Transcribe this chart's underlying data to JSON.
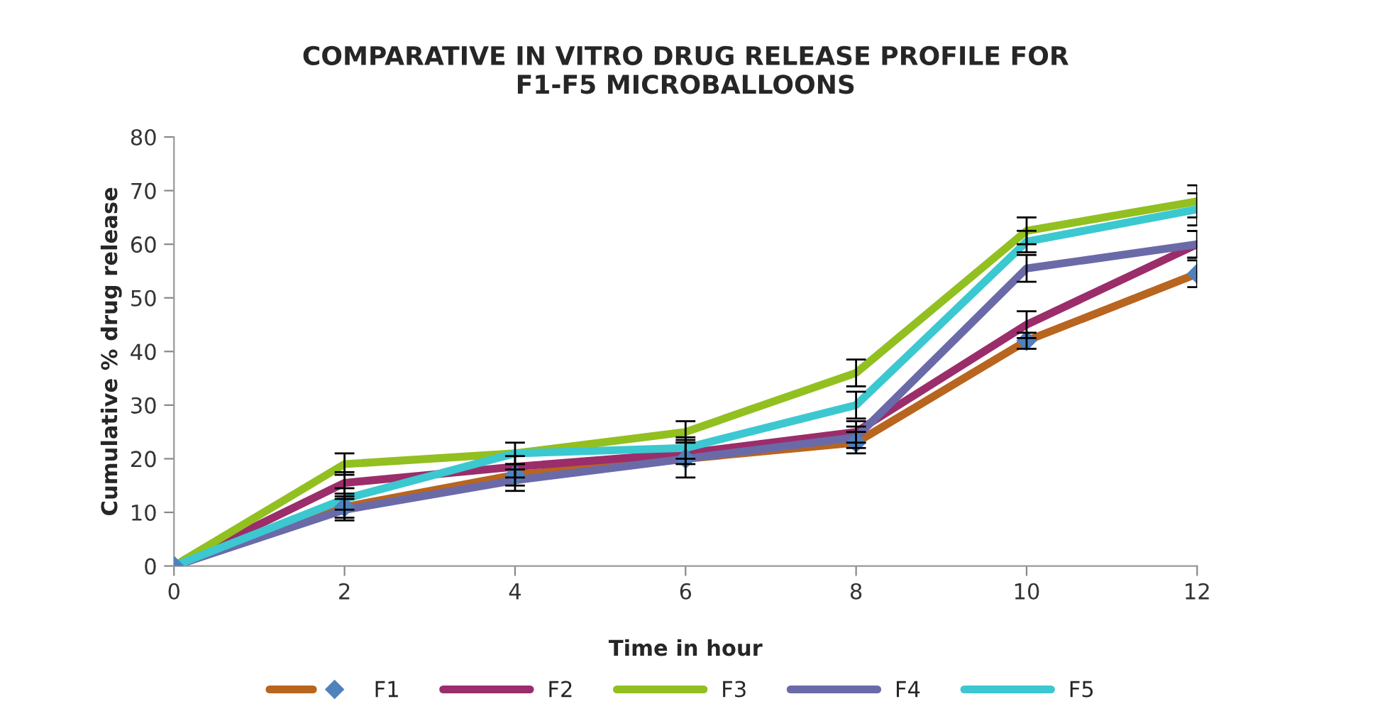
{
  "chart_data": {
    "type": "line",
    "title": "COMPARATIVE IN VITRO DRUG RELEASE PROFILE FOR\nF1-F5 MICROBALLOONS",
    "xlabel": "Time in hour",
    "ylabel": "Cumulative % drug release",
    "x": [
      0,
      2,
      4,
      6,
      8,
      10,
      12
    ],
    "series": [
      {
        "name": "F1",
        "color": "#b8651f",
        "marker": "diamond",
        "colors": [
          "#4f81bd",
          "#4f81bd",
          "#4f81bd",
          "#4f81bd",
          "#4f81bd",
          "#4f81bd",
          "#4f81bd"
        ],
        "values": [
          0,
          11,
          17,
          20,
          23,
          42,
          54.5
        ],
        "errors": [
          null,
          2,
          2,
          3.5,
          2,
          1.5,
          2.5
        ]
      },
      {
        "name": "F2",
        "color": "#9b2d6b",
        "values": [
          0,
          15.5,
          18.5,
          21,
          25,
          45,
          60
        ],
        "errors": [
          null,
          2,
          2,
          2,
          2,
          2.5,
          2.5
        ]
      },
      {
        "name": "F3",
        "color": "#92c020",
        "values": [
          0,
          19,
          21,
          25,
          36,
          62.5,
          68
        ],
        "errors": [
          null,
          2,
          2,
          2,
          2.5,
          2.5,
          3
        ]
      },
      {
        "name": "F4",
        "color": "#6b6aa8",
        "values": [
          0,
          10.5,
          16,
          20,
          24,
          55.5,
          60
        ],
        "errors": [
          null,
          2,
          2,
          null,
          2,
          2.5,
          2.5
        ]
      },
      {
        "name": "F5",
        "color": "#3cc8d0",
        "values": [
          0,
          12.5,
          21,
          22,
          30,
          60.5,
          66.5
        ],
        "errors": [
          null,
          2,
          null,
          2,
          2.5,
          2,
          3
        ]
      }
    ],
    "xlim": [
      0,
      12
    ],
    "xticks": [
      0,
      2,
      4,
      6,
      8,
      10,
      12
    ],
    "ylim": [
      0,
      80
    ],
    "yticks": [
      0,
      10,
      20,
      30,
      40,
      50,
      60,
      70,
      80
    ],
    "legend": "bottom",
    "line_style": "solid"
  }
}
